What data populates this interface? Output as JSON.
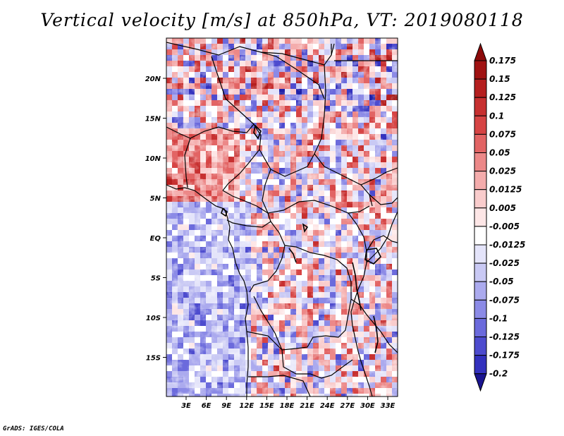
{
  "title": "Vertical velocity [m/s] at 850hPa, VT: 2019080118",
  "credit": "GrADS: IGES/COLA",
  "map": {
    "lon_labels": [
      "3E",
      "6E",
      "9E",
      "12E",
      "15E",
      "18E",
      "21E",
      "24E",
      "27E",
      "30E",
      "33E"
    ],
    "lat_labels": [
      "20N",
      "15N",
      "10N",
      "5N",
      "EQ",
      "5S",
      "10S",
      "15S"
    ]
  },
  "colorbar": {
    "levels": [
      {
        "label": "0.175",
        "color": "#a01212"
      },
      {
        "label": "0.15",
        "color": "#b51f1f"
      },
      {
        "label": "0.125",
        "color": "#c73030"
      },
      {
        "label": "0.1",
        "color": "#d64444"
      },
      {
        "label": "0.075",
        "color": "#e26464"
      },
      {
        "label": "0.05",
        "color": "#ec8888"
      },
      {
        "label": "0.025",
        "color": "#f4acac"
      },
      {
        "label": "0.0125",
        "color": "#f9cccc"
      },
      {
        "label": "0.005",
        "color": "#fde6e6"
      },
      {
        "label": "-0.005",
        "color": "#ffffff"
      },
      {
        "label": "-0.0125",
        "color": "#e4e4fa"
      },
      {
        "label": "-0.025",
        "color": "#c9c9f4"
      },
      {
        "label": "-0.05",
        "color": "#abaaee"
      },
      {
        "label": "-0.075",
        "color": "#8b8ae6"
      },
      {
        "label": "-0.1",
        "color": "#6b6adc"
      },
      {
        "label": "-0.125",
        "color": "#4d4bce"
      },
      {
        "label": "-0.175",
        "color": "#3331be"
      },
      {
        "label": "-0.2",
        "color": "#2020a8"
      }
    ],
    "top_color": "#8c0a0a",
    "bottom_color": "#1a1490"
  }
}
